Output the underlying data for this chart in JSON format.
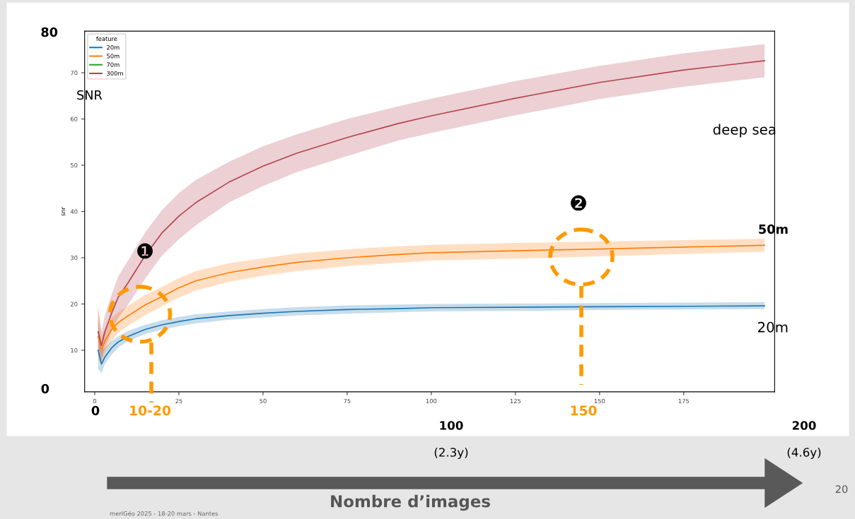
{
  "chart_data": {
    "type": "line",
    "ylabel": "snr",
    "legend_title": "feature",
    "legend": "top left",
    "grid": false,
    "marker": "none",
    "line_style": "solid",
    "xlim": [
      -3,
      202
    ],
    "ylim": [
      1,
      79
    ],
    "xticks": [
      0,
      25,
      50,
      75,
      100,
      125,
      150,
      175
    ],
    "yticks": [
      10,
      20,
      30,
      40,
      50,
      60,
      70
    ],
    "x": [
      1,
      2,
      3,
      5,
      7,
      10,
      15,
      20,
      25,
      30,
      40,
      50,
      60,
      75,
      90,
      100,
      125,
      150,
      175,
      199
    ],
    "series": [
      {
        "name": "20m",
        "color": "#1f77b4",
        "values": [
          10,
          7,
          8.5,
          10.5,
          11.8,
          13,
          14.5,
          15.5,
          16.2,
          16.8,
          17.5,
          18,
          18.4,
          18.8,
          19,
          19.2,
          19.3,
          19.4,
          19.5,
          19.6
        ],
        "lower": [
          6,
          5,
          7,
          9,
          10.6,
          12,
          13.5,
          14.5,
          15.2,
          15.8,
          16.6,
          17.1,
          17.5,
          17.9,
          18.2,
          18.4,
          18.5,
          18.7,
          18.8,
          18.9
        ],
        "upper": [
          17,
          10,
          10.5,
          12,
          13,
          14.2,
          15.5,
          16.5,
          17.2,
          17.8,
          18.4,
          18.9,
          19.3,
          19.7,
          19.9,
          20,
          20.1,
          20.2,
          20.3,
          20.4
        ]
      },
      {
        "name": "50m",
        "color": "#ff7f0e",
        "values": [
          13,
          10,
          12,
          14.5,
          16,
          17.5,
          19.8,
          21.6,
          23.5,
          25,
          26.8,
          28,
          29,
          30,
          30.7,
          31.1,
          31.5,
          31.9,
          32.3,
          32.7
        ],
        "lower": [
          8,
          7,
          9.5,
          12,
          13.8,
          15.3,
          17.6,
          19.5,
          21.4,
          22.9,
          24.8,
          26.1,
          27.1,
          28.2,
          28.9,
          29.4,
          29.8,
          30.3,
          30.8,
          31.3
        ],
        "upper": [
          20,
          13,
          14.5,
          17,
          18.2,
          19.7,
          22,
          23.7,
          25.6,
          27.1,
          28.8,
          29.9,
          30.9,
          31.8,
          32.5,
          32.8,
          33.2,
          33.5,
          33.8,
          34.1
        ]
      },
      {
        "name": "70m",
        "color": "#2ca02c",
        "values": [
          null,
          null,
          null,
          null,
          null,
          null,
          null,
          null,
          null,
          null,
          null,
          null,
          null,
          null,
          null,
          null,
          null,
          null,
          null,
          null
        ]
      },
      {
        "name": "300m",
        "color": "#b5454f",
        "values": [
          14,
          11,
          14,
          18,
          21.5,
          24.7,
          30.5,
          35.4,
          39,
          41.9,
          46.4,
          49.8,
          52.6,
          56,
          59,
          60.7,
          64.5,
          67.9,
          70.6,
          72.6
        ],
        "lower": [
          9,
          8,
          10.5,
          14,
          17,
          20,
          25.5,
          30.5,
          34,
          37,
          42,
          45.5,
          48.5,
          52,
          55.3,
          57,
          60.8,
          64.3,
          67,
          69
        ],
        "upper": [
          19,
          14,
          17.5,
          22,
          26,
          29.5,
          35.5,
          40.3,
          44,
          46.8,
          50.8,
          54.1,
          56.7,
          60,
          62.7,
          64.4,
          68.2,
          71.5,
          74.2,
          76.2
        ]
      }
    ],
    "annotations": [
      "80",
      "0",
      "0",
      "SNR",
      "deep sea",
      "50m",
      "20m",
      "❶",
      "❷",
      "10-20",
      "150",
      "100",
      "(2.3y)",
      "200",
      "(4.6y)",
      "Nombre d’images",
      "20",
      "merIGéo 2025 - 18-20 mars - Nantes"
    ]
  }
}
